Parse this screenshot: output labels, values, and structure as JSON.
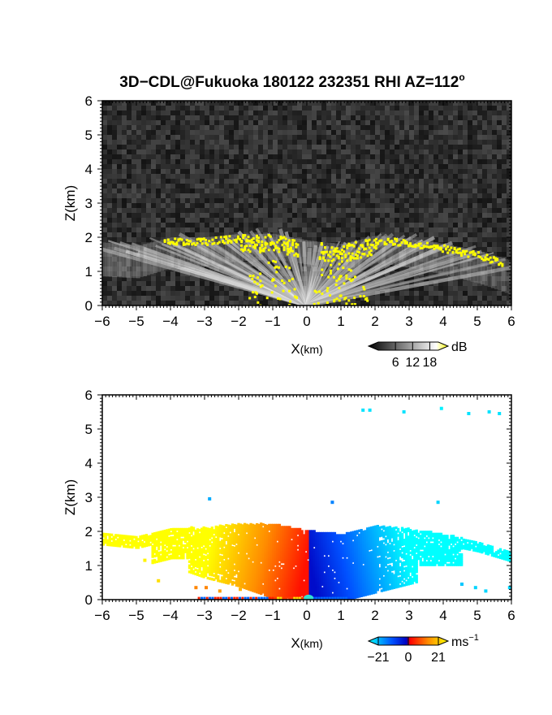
{
  "title": "3D−CDL@Fukuoka 180122 232351 RHI AZ=112",
  "title_superscript": "o",
  "chart_data": [
    {
      "type": "heatmap",
      "name": "backscatter-intensity",
      "xlabel": "X",
      "xlabel_unit": "(km)",
      "ylabel": "Z(km)",
      "xlim": [
        -6,
        6
      ],
      "ylim": [
        0,
        6
      ],
      "x_ticks": [
        "−6",
        "−5",
        "−4",
        "−3",
        "−2",
        "−1",
        "0",
        "1",
        "2",
        "3",
        "4",
        "5",
        "6"
      ],
      "y_ticks": [
        "0",
        "1",
        "2",
        "3",
        "4",
        "5",
        "6"
      ],
      "colorbar": {
        "unit": "dB",
        "ticks": [
          "6",
          "12",
          "18"
        ],
        "tick_values": [
          6,
          12,
          18
        ],
        "range": [
          0,
          21
        ],
        "colors": [
          "#000000",
          "#ffffff",
          "#ffff00"
        ]
      },
      "cloud_layer_top_km": [
        {
          "x": -6.0,
          "z": 1.85
        },
        {
          "x": -5.0,
          "z": 1.75
        },
        {
          "x": -4.0,
          "z": 2.0
        },
        {
          "x": -3.0,
          "z": 2.0
        },
        {
          "x": -2.0,
          "z": 2.1
        },
        {
          "x": -1.0,
          "z": 2.1
        },
        {
          "x": 0.0,
          "z": 1.9
        },
        {
          "x": 1.0,
          "z": 1.8
        },
        {
          "x": 2.0,
          "z": 2.05
        },
        {
          "x": 3.0,
          "z": 1.95
        },
        {
          "x": 4.0,
          "z": 1.8
        },
        {
          "x": 5.0,
          "z": 1.6
        },
        {
          "x": 6.0,
          "z": 1.3
        }
      ]
    },
    {
      "type": "heatmap",
      "name": "doppler-velocity",
      "xlabel": "X",
      "xlabel_unit": "(km)",
      "ylabel": "Z(km)",
      "xlim": [
        -6,
        6
      ],
      "ylim": [
        0,
        6
      ],
      "x_ticks": [
        "−6",
        "−5",
        "−4",
        "−3",
        "−2",
        "−1",
        "0",
        "1",
        "2",
        "3",
        "4",
        "5",
        "6"
      ],
      "y_ticks": [
        "0",
        "1",
        "2",
        "3",
        "4",
        "5",
        "6"
      ],
      "colorbar": {
        "unit": "ms",
        "unit_superscript": "−1",
        "ticks": [
          "−21",
          "0",
          "21"
        ],
        "tick_values": [
          -21,
          0,
          21
        ],
        "range": [
          -21,
          21
        ],
        "colors": [
          "#00ffff",
          "#0050ff",
          "#0000c0",
          "#ff0000",
          "#ff8c00",
          "#ffff00"
        ]
      }
    }
  ]
}
